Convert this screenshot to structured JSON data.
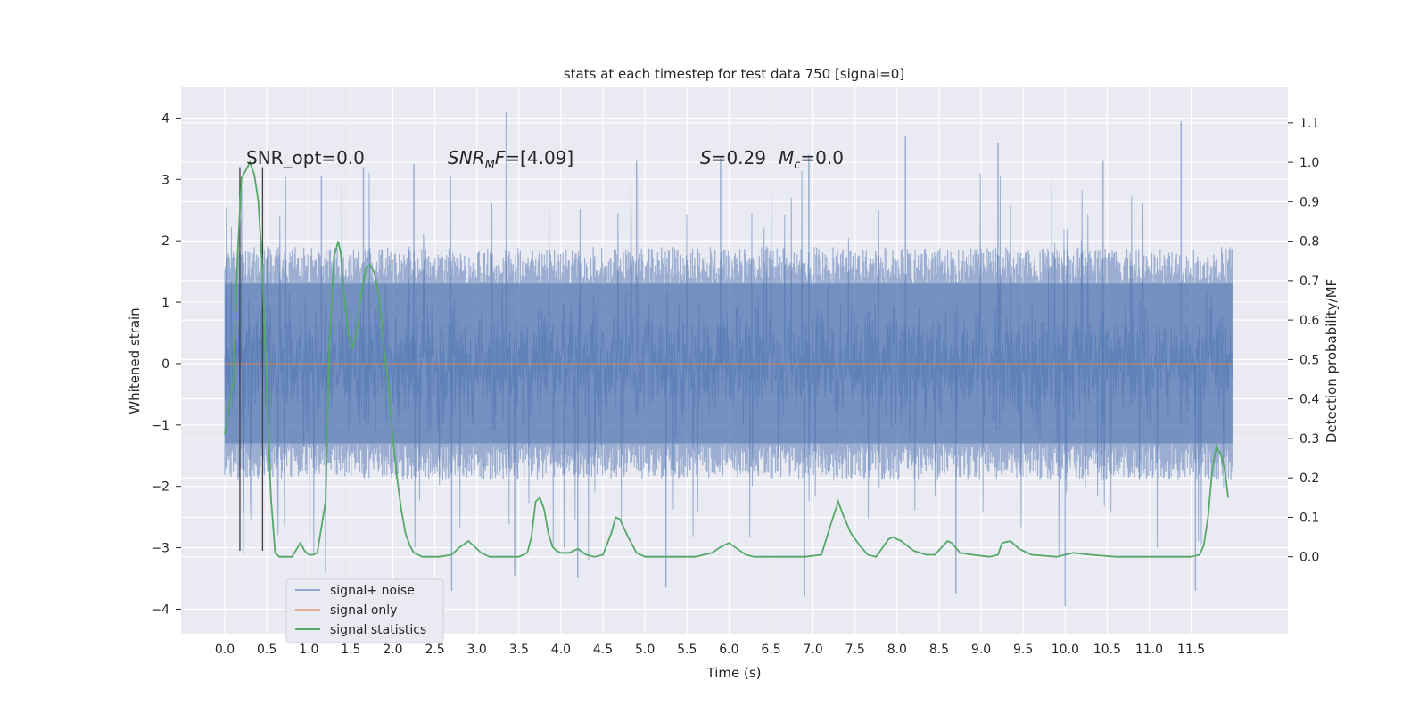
{
  "chart_data": {
    "type": "line",
    "title": "stats at each timestep for test data 750 [signal=0]",
    "xlabel": "Time (s)",
    "ylabel": "Whitened strain",
    "y2label": "Detection probability/MF",
    "xlim": [
      -0.52,
      12.65
    ],
    "ylim": [
      -4.4,
      4.5
    ],
    "y2lim": [
      -0.195,
      1.19
    ],
    "xticks": [
      0.0,
      0.5,
      1.0,
      1.5,
      2.0,
      2.5,
      3.0,
      3.5,
      4.0,
      4.5,
      5.0,
      5.5,
      6.0,
      6.5,
      7.0,
      7.5,
      8.0,
      8.5,
      9.0,
      9.5,
      10.0,
      10.5,
      11.0,
      11.5
    ],
    "xtick_labels": [
      "0.0",
      "0.5",
      "1.0",
      "1.5",
      "2.0",
      "2.5",
      "3.0",
      "3.5",
      "4.0",
      "4.5",
      "5.0",
      "5.5",
      "6.0",
      "6.5",
      "7.0",
      "7.5",
      "8.0",
      "8.5",
      "9.0",
      "9.5",
      "10.0",
      "10.5",
      "11.0",
      "11.5"
    ],
    "yticks": [
      -4,
      -3,
      -2,
      -1,
      0,
      1,
      2,
      3,
      4
    ],
    "ytick_labels": [
      "−4",
      "−3",
      "−2",
      "−1",
      "0",
      "1",
      "2",
      "3",
      "4"
    ],
    "y2ticks": [
      0.0,
      0.1,
      0.2,
      0.3,
      0.4,
      0.5,
      0.6,
      0.7,
      0.8,
      0.9,
      1.0,
      1.1
    ],
    "y2tick_labels": [
      "0.0",
      "0.1",
      "0.2",
      "0.3",
      "0.4",
      "0.5",
      "0.6",
      "0.7",
      "0.8",
      "0.9",
      "1.0",
      "1.1"
    ],
    "grid": true,
    "legend_position": "lower-left",
    "background": "#eaeaf2",
    "series": [
      {
        "name": "signal+ noise",
        "color": "#4c72b0",
        "axis": "left",
        "description_range": {
          "x": [
            0.0,
            11.99
          ],
          "typical_band": [
            -1.3,
            1.3
          ],
          "extreme_band": [
            -3.95,
            4.1
          ]
        },
        "peaks": [
          {
            "x": 0.02,
            "y": 2.55
          },
          {
            "x": 0.2,
            "y": 2.85
          },
          {
            "x": 0.45,
            "y": 2.0
          },
          {
            "x": 1.15,
            "y": 3.05
          },
          {
            "x": 1.65,
            "y": 3.2
          },
          {
            "x": 2.25,
            "y": 3.25
          },
          {
            "x": 3.35,
            "y": 4.1
          },
          {
            "x": 4.9,
            "y": 3.3
          },
          {
            "x": 5.9,
            "y": 3.35
          },
          {
            "x": 6.95,
            "y": 3.4
          },
          {
            "x": 8.1,
            "y": 3.7
          },
          {
            "x": 9.2,
            "y": 3.6
          },
          {
            "x": 10.45,
            "y": 3.3
          },
          {
            "x": 11.38,
            "y": 3.95
          }
        ],
        "troughs": [
          {
            "x": 0.22,
            "y": -3.1
          },
          {
            "x": 1.2,
            "y": -3.4
          },
          {
            "x": 2.7,
            "y": -3.7
          },
          {
            "x": 3.45,
            "y": -3.45
          },
          {
            "x": 4.2,
            "y": -3.5
          },
          {
            "x": 5.25,
            "y": -3.65
          },
          {
            "x": 6.9,
            "y": -3.8
          },
          {
            "x": 8.7,
            "y": -3.75
          },
          {
            "x": 10.0,
            "y": -3.95
          },
          {
            "x": 11.55,
            "y": -3.7
          }
        ]
      },
      {
        "name": "signal only",
        "color": "#dd8452",
        "axis": "left",
        "x": [
          0.0,
          11.99
        ],
        "y": [
          0.0,
          0.0
        ]
      },
      {
        "name": "signal statistics",
        "color": "#55a868",
        "axis": "right",
        "x": [
          0.0,
          0.05,
          0.1,
          0.15,
          0.2,
          0.25,
          0.3,
          0.35,
          0.4,
          0.45,
          0.5,
          0.55,
          0.6,
          0.65,
          0.7,
          0.8,
          0.9,
          0.95,
          1.0,
          1.05,
          1.1,
          1.2,
          1.25,
          1.3,
          1.35,
          1.38,
          1.42,
          1.47,
          1.52,
          1.57,
          1.62,
          1.68,
          1.73,
          1.78,
          1.83,
          1.9,
          1.95,
          2.0,
          2.05,
          2.1,
          2.15,
          2.2,
          2.25,
          2.3,
          2.35,
          2.45,
          2.55,
          2.7,
          2.8,
          2.9,
          2.95,
          3.05,
          3.15,
          3.3,
          3.5,
          3.6,
          3.65,
          3.7,
          3.75,
          3.8,
          3.85,
          3.9,
          3.95,
          4.0,
          4.1,
          4.2,
          4.3,
          4.4,
          4.5,
          4.6,
          4.65,
          4.7,
          4.8,
          4.9,
          5.0,
          5.3,
          5.6,
          5.8,
          5.9,
          6.0,
          6.1,
          6.2,
          6.3,
          6.5,
          6.7,
          6.9,
          7.1,
          7.2,
          7.3,
          7.35,
          7.45,
          7.55,
          7.65,
          7.75,
          7.9,
          7.95,
          8.05,
          8.2,
          8.35,
          8.45,
          8.6,
          8.65,
          8.75,
          8.9,
          9.1,
          9.2,
          9.25,
          9.35,
          9.45,
          9.6,
          9.9,
          10.0,
          10.1,
          10.3,
          10.6,
          10.9,
          11.2,
          11.5,
          11.6,
          11.65,
          11.7,
          11.75,
          11.8,
          11.85,
          11.9,
          11.94
        ],
        "y": [
          0.31,
          0.38,
          0.44,
          0.75,
          0.96,
          0.98,
          1.0,
          0.97,
          0.9,
          0.72,
          0.42,
          0.15,
          0.01,
          0.0,
          0.0,
          0.0,
          0.035,
          0.015,
          0.005,
          0.005,
          0.01,
          0.14,
          0.57,
          0.76,
          0.8,
          0.77,
          0.67,
          0.56,
          0.53,
          0.57,
          0.66,
          0.73,
          0.74,
          0.72,
          0.67,
          0.52,
          0.43,
          0.3,
          0.2,
          0.12,
          0.06,
          0.03,
          0.01,
          0.005,
          0.0,
          0.0,
          0.0,
          0.005,
          0.025,
          0.04,
          0.03,
          0.01,
          0.0,
          0.0,
          0.0,
          0.01,
          0.05,
          0.14,
          0.15,
          0.12,
          0.06,
          0.025,
          0.015,
          0.01,
          0.01,
          0.02,
          0.005,
          0.0,
          0.005,
          0.06,
          0.1,
          0.095,
          0.05,
          0.01,
          0.0,
          0.0,
          0.0,
          0.01,
          0.025,
          0.035,
          0.02,
          0.005,
          0.0,
          0.0,
          0.0,
          0.0,
          0.005,
          0.075,
          0.14,
          0.11,
          0.06,
          0.03,
          0.005,
          0.0,
          0.045,
          0.05,
          0.04,
          0.015,
          0.005,
          0.005,
          0.04,
          0.035,
          0.01,
          0.005,
          0.0,
          0.005,
          0.035,
          0.04,
          0.02,
          0.005,
          0.0,
          0.005,
          0.01,
          0.005,
          0.0,
          0.0,
          0.0,
          0.0,
          0.005,
          0.03,
          0.1,
          0.22,
          0.28,
          0.26,
          0.22,
          0.15
        ]
      }
    ],
    "vertical_markers": {
      "color": "#404040",
      "x": [
        0.18,
        0.45
      ],
      "y_range": [
        -3.05,
        3.2
      ]
    },
    "annotations": [
      {
        "text": "SNR_opt=0.0",
        "x": 0.2,
        "y": 3.2
      },
      {
        "text": "SNR_MF=[4.09]",
        "x": 2.6,
        "y": 3.2
      },
      {
        "text": "S=0.29   M_c=0.0",
        "x": 5.6,
        "y": 3.2
      }
    ]
  }
}
